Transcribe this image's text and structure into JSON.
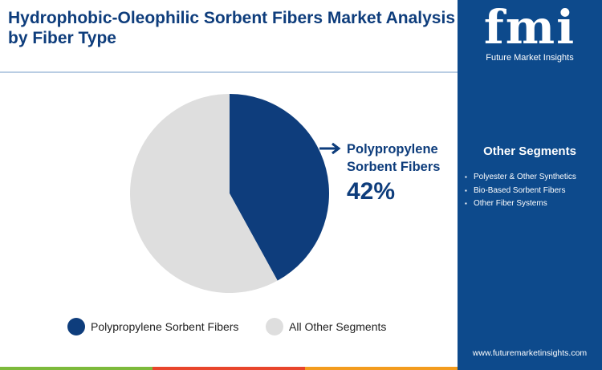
{
  "chart_data": {
    "type": "pie",
    "title": "Hydrophobic-Oleophilic Sorbent Fibers Market Analysis by Fiber Type",
    "categories": [
      "Polypropylene Sorbent Fibers",
      "All Other Segments"
    ],
    "values": [
      42,
      58
    ],
    "value_labels": [
      "42%",
      null
    ],
    "colors": [
      "#0e3d7c",
      "#dedede"
    ],
    "legend": "bottom"
  },
  "sidebar": {
    "logo": {
      "name": "fmi",
      "tagline": "Future Market Insights"
    },
    "heading": "Other Segments",
    "items": [
      "Polyester & Other Synthetics",
      "Bio-Based Sorbent Fibers",
      "Other Fiber Systems"
    ],
    "website": "www.futuremarketinsights.com"
  }
}
